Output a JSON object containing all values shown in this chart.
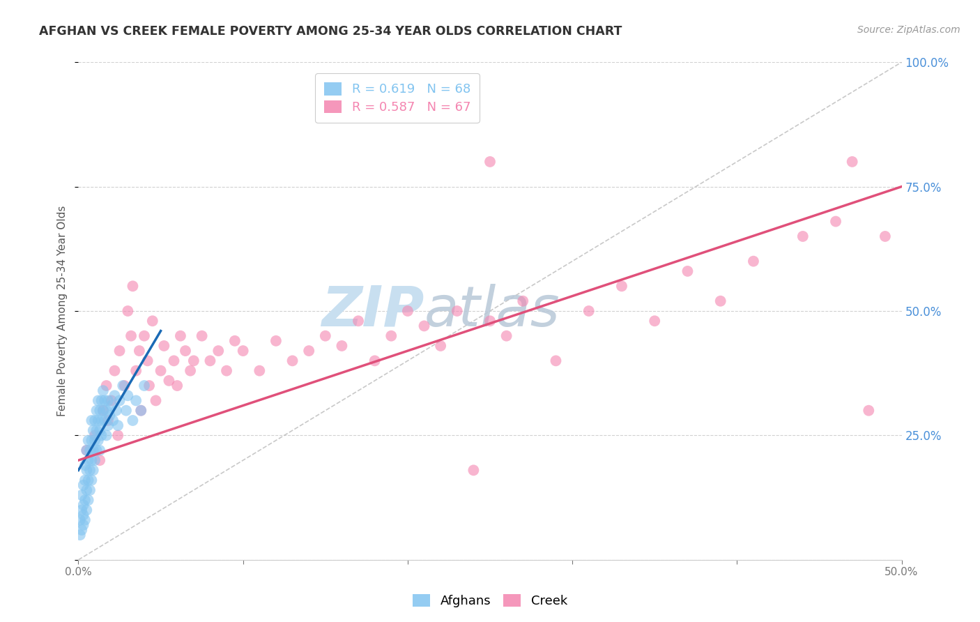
{
  "title": "AFGHAN VS CREEK FEMALE POVERTY AMONG 25-34 YEAR OLDS CORRELATION CHART",
  "source": "Source: ZipAtlas.com",
  "ylabel": "Female Poverty Among 25-34 Year Olds",
  "xlim": [
    0.0,
    0.5
  ],
  "ylim": [
    0.0,
    1.0
  ],
  "legend_entries": [
    {
      "label": "R = 0.619   N = 68",
      "color": "#82c4f0"
    },
    {
      "label": "R = 0.587   N = 67",
      "color": "#f485b0"
    }
  ],
  "legend_label_afghans": "Afghans",
  "legend_label_creek": "Creek",
  "watermark_zip": "ZIP",
  "watermark_atlas": "atlas",
  "watermark_color": "#c8dff0",
  "background_color": "#ffffff",
  "grid_color": "#cccccc",
  "title_color": "#333333",
  "source_color": "#999999",
  "axis_label_color": "#555555",
  "right_tick_color": "#4a90d9",
  "afghans_scatter_color": "#82c4f0",
  "afghans_scatter_alpha": 0.6,
  "creek_scatter_color": "#f485b0",
  "creek_scatter_alpha": 0.6,
  "afghans_line_color": "#1a6ab5",
  "creek_line_color": "#e0507a",
  "diagonal_color": "#bbbbbb",
  "afghans_line_x": [
    0.0,
    0.05
  ],
  "afghans_line_y": [
    0.18,
    0.46
  ],
  "creek_line_x": [
    0.0,
    0.5
  ],
  "creek_line_y": [
    0.2,
    0.75
  ],
  "afghans_x": [
    0.001,
    0.001,
    0.002,
    0.002,
    0.002,
    0.003,
    0.003,
    0.003,
    0.003,
    0.004,
    0.004,
    0.004,
    0.004,
    0.005,
    0.005,
    0.005,
    0.005,
    0.006,
    0.006,
    0.006,
    0.006,
    0.007,
    0.007,
    0.007,
    0.008,
    0.008,
    0.008,
    0.008,
    0.009,
    0.009,
    0.009,
    0.01,
    0.01,
    0.01,
    0.011,
    0.011,
    0.011,
    0.012,
    0.012,
    0.012,
    0.013,
    0.013,
    0.013,
    0.014,
    0.014,
    0.014,
    0.015,
    0.015,
    0.016,
    0.016,
    0.017,
    0.017,
    0.018,
    0.018,
    0.019,
    0.02,
    0.021,
    0.022,
    0.023,
    0.024,
    0.025,
    0.027,
    0.029,
    0.03,
    0.033,
    0.035,
    0.038,
    0.04
  ],
  "afghans_y": [
    0.05,
    0.08,
    0.06,
    0.1,
    0.13,
    0.07,
    0.11,
    0.15,
    0.09,
    0.12,
    0.08,
    0.16,
    0.19,
    0.1,
    0.14,
    0.18,
    0.22,
    0.12,
    0.16,
    0.2,
    0.24,
    0.14,
    0.18,
    0.22,
    0.16,
    0.2,
    0.24,
    0.28,
    0.18,
    0.22,
    0.26,
    0.2,
    0.24,
    0.28,
    0.22,
    0.26,
    0.3,
    0.24,
    0.28,
    0.32,
    0.26,
    0.3,
    0.22,
    0.28,
    0.32,
    0.25,
    0.3,
    0.34,
    0.28,
    0.32,
    0.3,
    0.25,
    0.32,
    0.27,
    0.29,
    0.31,
    0.28,
    0.33,
    0.3,
    0.27,
    0.32,
    0.35,
    0.3,
    0.33,
    0.28,
    0.32,
    0.3,
    0.35
  ],
  "creek_x": [
    0.005,
    0.01,
    0.013,
    0.015,
    0.017,
    0.018,
    0.02,
    0.022,
    0.024,
    0.025,
    0.028,
    0.03,
    0.032,
    0.033,
    0.035,
    0.037,
    0.038,
    0.04,
    0.042,
    0.043,
    0.045,
    0.047,
    0.05,
    0.052,
    0.055,
    0.058,
    0.06,
    0.062,
    0.065,
    0.068,
    0.07,
    0.075,
    0.08,
    0.085,
    0.09,
    0.095,
    0.1,
    0.11,
    0.12,
    0.13,
    0.14,
    0.15,
    0.16,
    0.17,
    0.18,
    0.19,
    0.2,
    0.21,
    0.22,
    0.23,
    0.24,
    0.25,
    0.26,
    0.27,
    0.29,
    0.31,
    0.33,
    0.35,
    0.37,
    0.39,
    0.41,
    0.44,
    0.46,
    0.48,
    0.25,
    0.47,
    0.49
  ],
  "creek_y": [
    0.22,
    0.25,
    0.2,
    0.3,
    0.35,
    0.28,
    0.32,
    0.38,
    0.25,
    0.42,
    0.35,
    0.5,
    0.45,
    0.55,
    0.38,
    0.42,
    0.3,
    0.45,
    0.4,
    0.35,
    0.48,
    0.32,
    0.38,
    0.43,
    0.36,
    0.4,
    0.35,
    0.45,
    0.42,
    0.38,
    0.4,
    0.45,
    0.4,
    0.42,
    0.38,
    0.44,
    0.42,
    0.38,
    0.44,
    0.4,
    0.42,
    0.45,
    0.43,
    0.48,
    0.4,
    0.45,
    0.5,
    0.47,
    0.43,
    0.5,
    0.18,
    0.48,
    0.45,
    0.52,
    0.4,
    0.5,
    0.55,
    0.48,
    0.58,
    0.52,
    0.6,
    0.65,
    0.68,
    0.3,
    0.8,
    0.8,
    0.65
  ]
}
